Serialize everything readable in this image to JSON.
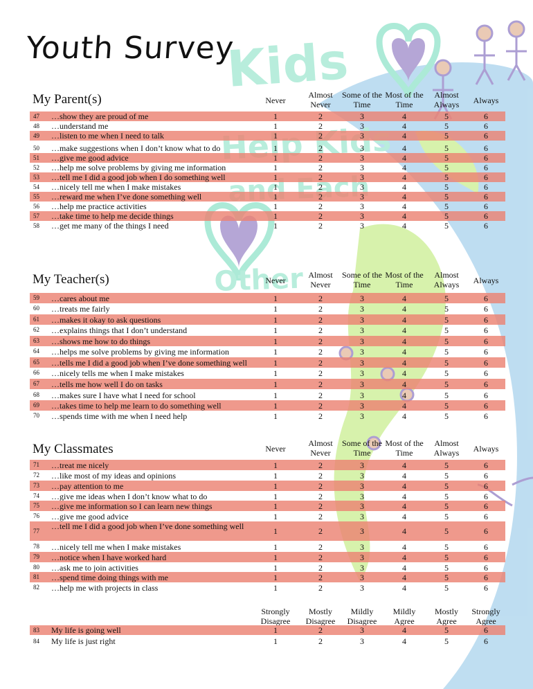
{
  "title": "Youth Survey",
  "scale_frequency": [
    "Never",
    "Almost Never",
    "Some of the Time",
    "Most of the Time",
    "Almost Always",
    "Always"
  ],
  "scale_agreement": [
    "Strongly Disagree",
    "Mostly Disagree",
    "Mildly Disagree",
    "Mildly Agree",
    "Mostly Agree",
    "Strongly Agree"
  ],
  "rating_values": [
    "1",
    "2",
    "3",
    "4",
    "5",
    "6"
  ],
  "sections": [
    {
      "id": "parents",
      "title": "My Parent(s)",
      "items": [
        {
          "num": "47",
          "text": "…show they are proud of me",
          "shaded": true
        },
        {
          "num": "48",
          "text": "…understand me",
          "shaded": false
        },
        {
          "num": "49",
          "text": "…listen to me when I need to talk",
          "shaded": true
        },
        {
          "num": "50",
          "text": "…make suggestions when I don’t know what to do",
          "shaded": false
        },
        {
          "num": "51",
          "text": "…give me good advice",
          "shaded": true
        },
        {
          "num": "52",
          "text": "…help me solve problems by giving me information",
          "shaded": false
        },
        {
          "num": "53",
          "text": "…tell me I did a good job when I do something well",
          "shaded": true
        },
        {
          "num": "54",
          "text": "…nicely tell me when I make mistakes",
          "shaded": false
        },
        {
          "num": "55",
          "text": "…reward me when I’ve done something well",
          "shaded": true
        },
        {
          "num": "56",
          "text": "…help me practice activities",
          "shaded": false
        },
        {
          "num": "57",
          "text": "…take time to help me decide things",
          "shaded": true
        },
        {
          "num": "58",
          "text": "…get me many of the things I need",
          "shaded": false
        }
      ]
    },
    {
      "id": "teachers",
      "title": "My Teacher(s)",
      "items": [
        {
          "num": "59",
          "text": "…cares about me",
          "shaded": true
        },
        {
          "num": "60",
          "text": "…treats me fairly",
          "shaded": false
        },
        {
          "num": "61",
          "text": "…makes it okay to ask questions",
          "shaded": true
        },
        {
          "num": "62",
          "text": "…explains things that I don’t understand",
          "shaded": false
        },
        {
          "num": "63",
          "text": "…shows me how to do things",
          "shaded": true
        },
        {
          "num": "64",
          "text": "…helps me solve problems by giving me information",
          "shaded": false
        },
        {
          "num": "65",
          "text": "…tells me I did a good job when I’ve done something well",
          "shaded": true
        },
        {
          "num": "66",
          "text": "…nicely tells me when I make mistakes",
          "shaded": false
        },
        {
          "num": "67",
          "text": "…tells me how well I do on tasks",
          "shaded": true
        },
        {
          "num": "68",
          "text": "…makes sure I have what I need for school",
          "shaded": false
        },
        {
          "num": "69",
          "text": "…takes time to help me learn to do something well",
          "shaded": true
        },
        {
          "num": "70",
          "text": "…spends time with me when I need help",
          "shaded": false
        }
      ]
    },
    {
      "id": "classmates",
      "title": "My Classmates",
      "items": [
        {
          "num": "71",
          "text": "…treat me nicely",
          "shaded": true
        },
        {
          "num": "72",
          "text": "…like most of my ideas and opinions",
          "shaded": false
        },
        {
          "num": "73",
          "text": "…pay attention to me",
          "shaded": true
        },
        {
          "num": "74",
          "text": "…give me ideas when I don’t know what to do",
          "shaded": false
        },
        {
          "num": "75",
          "text": "…give me information so I can learn new things",
          "shaded": true
        },
        {
          "num": "76",
          "text": "…give me good advice",
          "shaded": false
        },
        {
          "num": "77",
          "text": "…tell me I did a good job when I’ve done something well",
          "shaded": true
        },
        {
          "num": "78",
          "text": "…nicely tell me when I make mistakes",
          "shaded": false
        },
        {
          "num": "79",
          "text": "…notice when I have worked hard",
          "shaded": true
        },
        {
          "num": "80",
          "text": "…ask me to join activities",
          "shaded": false
        },
        {
          "num": "81",
          "text": "…spend time doing things with me",
          "shaded": true
        },
        {
          "num": "82",
          "text": "…help me with projects in class",
          "shaded": false
        }
      ]
    },
    {
      "id": "life",
      "title": "",
      "items": [
        {
          "num": "83",
          "text": "My life is going well",
          "shaded": true
        },
        {
          "num": "84",
          "text": "My life is just right",
          "shaded": false
        }
      ]
    }
  ],
  "colors": {
    "row_shade": "#eb8273",
    "kids_art_green": "#7fe0c0",
    "kids_art_purple": "#7a5fb5",
    "globe_blue": "#8ac2e6",
    "globe_green": "#b8e86a"
  },
  "background_art_text": "Kids Help Kids and Each Other"
}
